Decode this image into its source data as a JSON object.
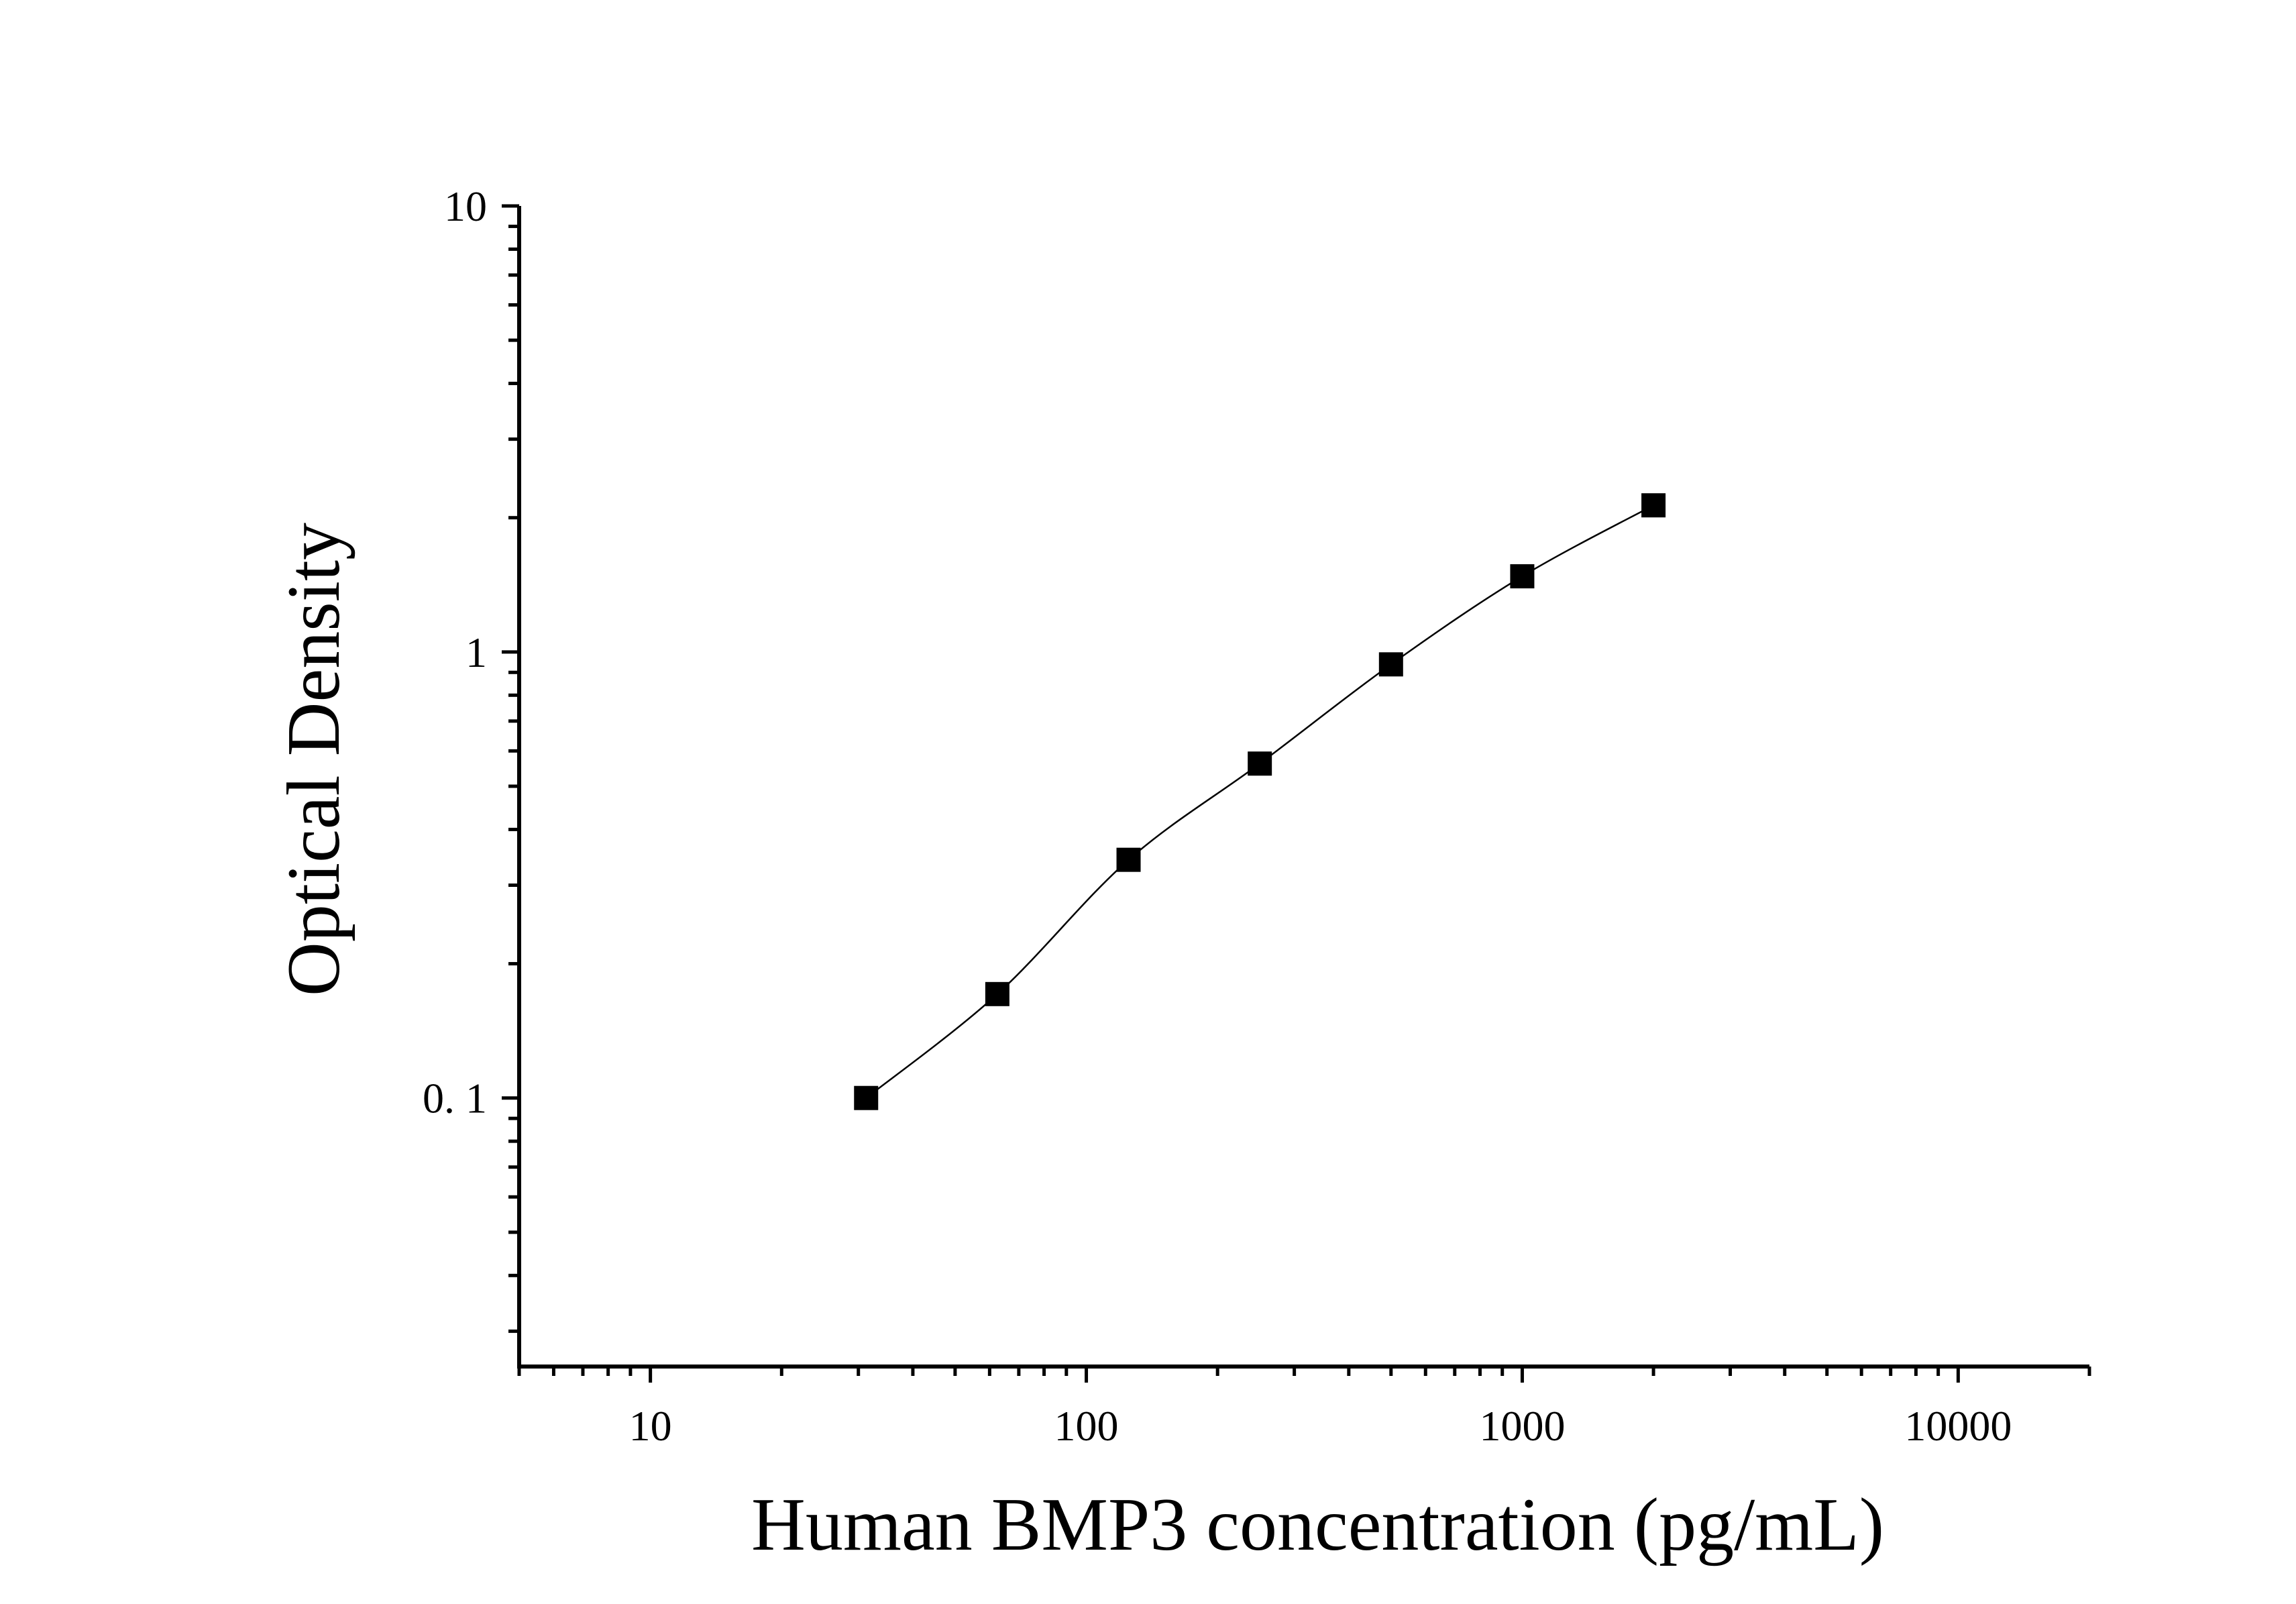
{
  "chart_data": {
    "type": "scatter",
    "title": "",
    "xlabel": "Human BMP3 concentration (pg/mL)",
    "ylabel": "Optical Density",
    "xscale": "log",
    "yscale": "log",
    "xlim": [
      5,
      20000
    ],
    "ylim": [
      0.025,
      10
    ],
    "grid": false,
    "legend": "none",
    "x_tick_labels": [
      "10",
      "100",
      "1000",
      "10000"
    ],
    "y_tick_labels": [
      "0. 1",
      "1",
      "10"
    ],
    "series": [
      {
        "x": [
          31.25,
          62.5,
          125,
          250,
          500,
          1000,
          2000
        ],
        "y": [
          0.1,
          0.171,
          0.342,
          0.562,
          0.938,
          1.478,
          2.132
        ],
        "marker": "square",
        "fit_curve": true
      }
    ],
    "colors": {
      "marker": "#000000",
      "curve": "#000000",
      "axis": "#000000"
    }
  }
}
